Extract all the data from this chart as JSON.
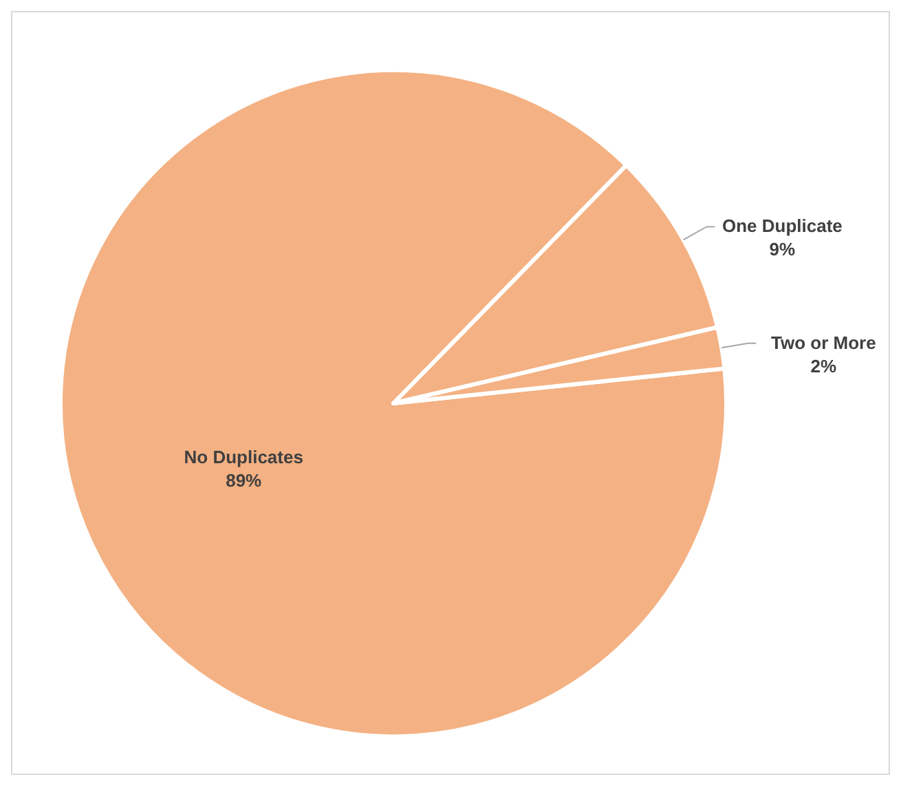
{
  "chart_data": {
    "type": "pie",
    "categories": [
      "No Duplicates",
      "One Duplicate",
      "Two or More"
    ],
    "values": [
      89,
      9,
      2
    ],
    "value_labels": [
      "89%",
      "9%",
      "2%"
    ],
    "colors": [
      "#f4b183",
      "#f4b183",
      "#f4b183"
    ]
  }
}
